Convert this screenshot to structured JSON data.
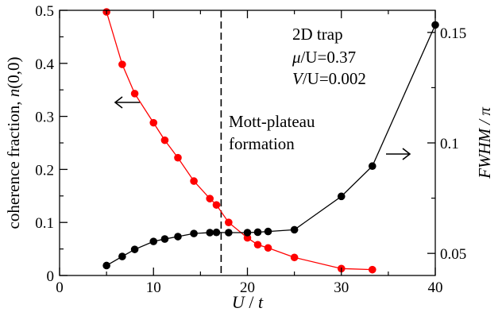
{
  "chart_data": {
    "type": "line",
    "x_axis": {
      "label_var": "U",
      "label_sep": " / ",
      "label_den": "t",
      "lim": [
        0,
        40
      ],
      "ticks": [
        0,
        10,
        20,
        30,
        40
      ],
      "tick_labels": [
        "0",
        "10",
        "20",
        "30",
        "40"
      ]
    },
    "y_left": {
      "label_text": "coherence fraction, ",
      "label_var": "n",
      "label_arg": "(0,0)",
      "lim": [
        0,
        0.5
      ],
      "ticks": [
        0,
        0.1,
        0.2,
        0.3,
        0.4,
        0.5
      ],
      "tick_labels": [
        "0",
        "0.1",
        "0.2",
        "0.3",
        "0.4",
        "0.5"
      ]
    },
    "y_right": {
      "label_text": "FWHM / π",
      "lim": [
        0.04,
        0.16
      ],
      "ticks": [
        0.05,
        0.1,
        0.15
      ],
      "tick_labels": [
        "0.05",
        "0.1",
        "0.15"
      ]
    },
    "series": [
      {
        "axis": "left",
        "color": "#ff0000",
        "x": [
          5,
          6.67,
          8,
          10,
          11.2,
          12.6,
          14.3,
          16,
          16.7,
          18,
          20,
          21.1,
          22.2,
          25,
          30,
          33.3
        ],
        "y": [
          0.497,
          0.398,
          0.343,
          0.288,
          0.255,
          0.222,
          0.178,
          0.145,
          0.133,
          0.1,
          0.071,
          0.058,
          0.052,
          0.034,
          0.013,
          0.011
        ]
      },
      {
        "axis": "right",
        "color": "#000000",
        "x": [
          5,
          6.67,
          8,
          10,
          11.2,
          12.6,
          14.3,
          16,
          16.7,
          18,
          20,
          21.1,
          22.2,
          25,
          30,
          33.3,
          40
        ],
        "y": [
          0.0445,
          0.0486,
          0.0518,
          0.0554,
          0.0565,
          0.0576,
          0.059,
          0.0594,
          0.0595,
          0.0594,
          0.0594,
          0.0596,
          0.0599,
          0.0607,
          0.0758,
          0.0895,
          0.1534
        ]
      }
    ],
    "vline": {
      "x": 17.2,
      "style": "dashed"
    },
    "annotations": {
      "box_line1": "2D trap",
      "box_line2_var": "μ",
      "box_line2_rest": "/U=0.37",
      "box_line3_var": "V",
      "box_line3_rest": "/U=0.002",
      "mott_line1": "Mott-plateau",
      "mott_line2": "formation"
    },
    "arrows": [
      {
        "direction": "left",
        "points_to_axis": "left"
      },
      {
        "direction": "right",
        "points_to_axis": "right"
      }
    ]
  }
}
